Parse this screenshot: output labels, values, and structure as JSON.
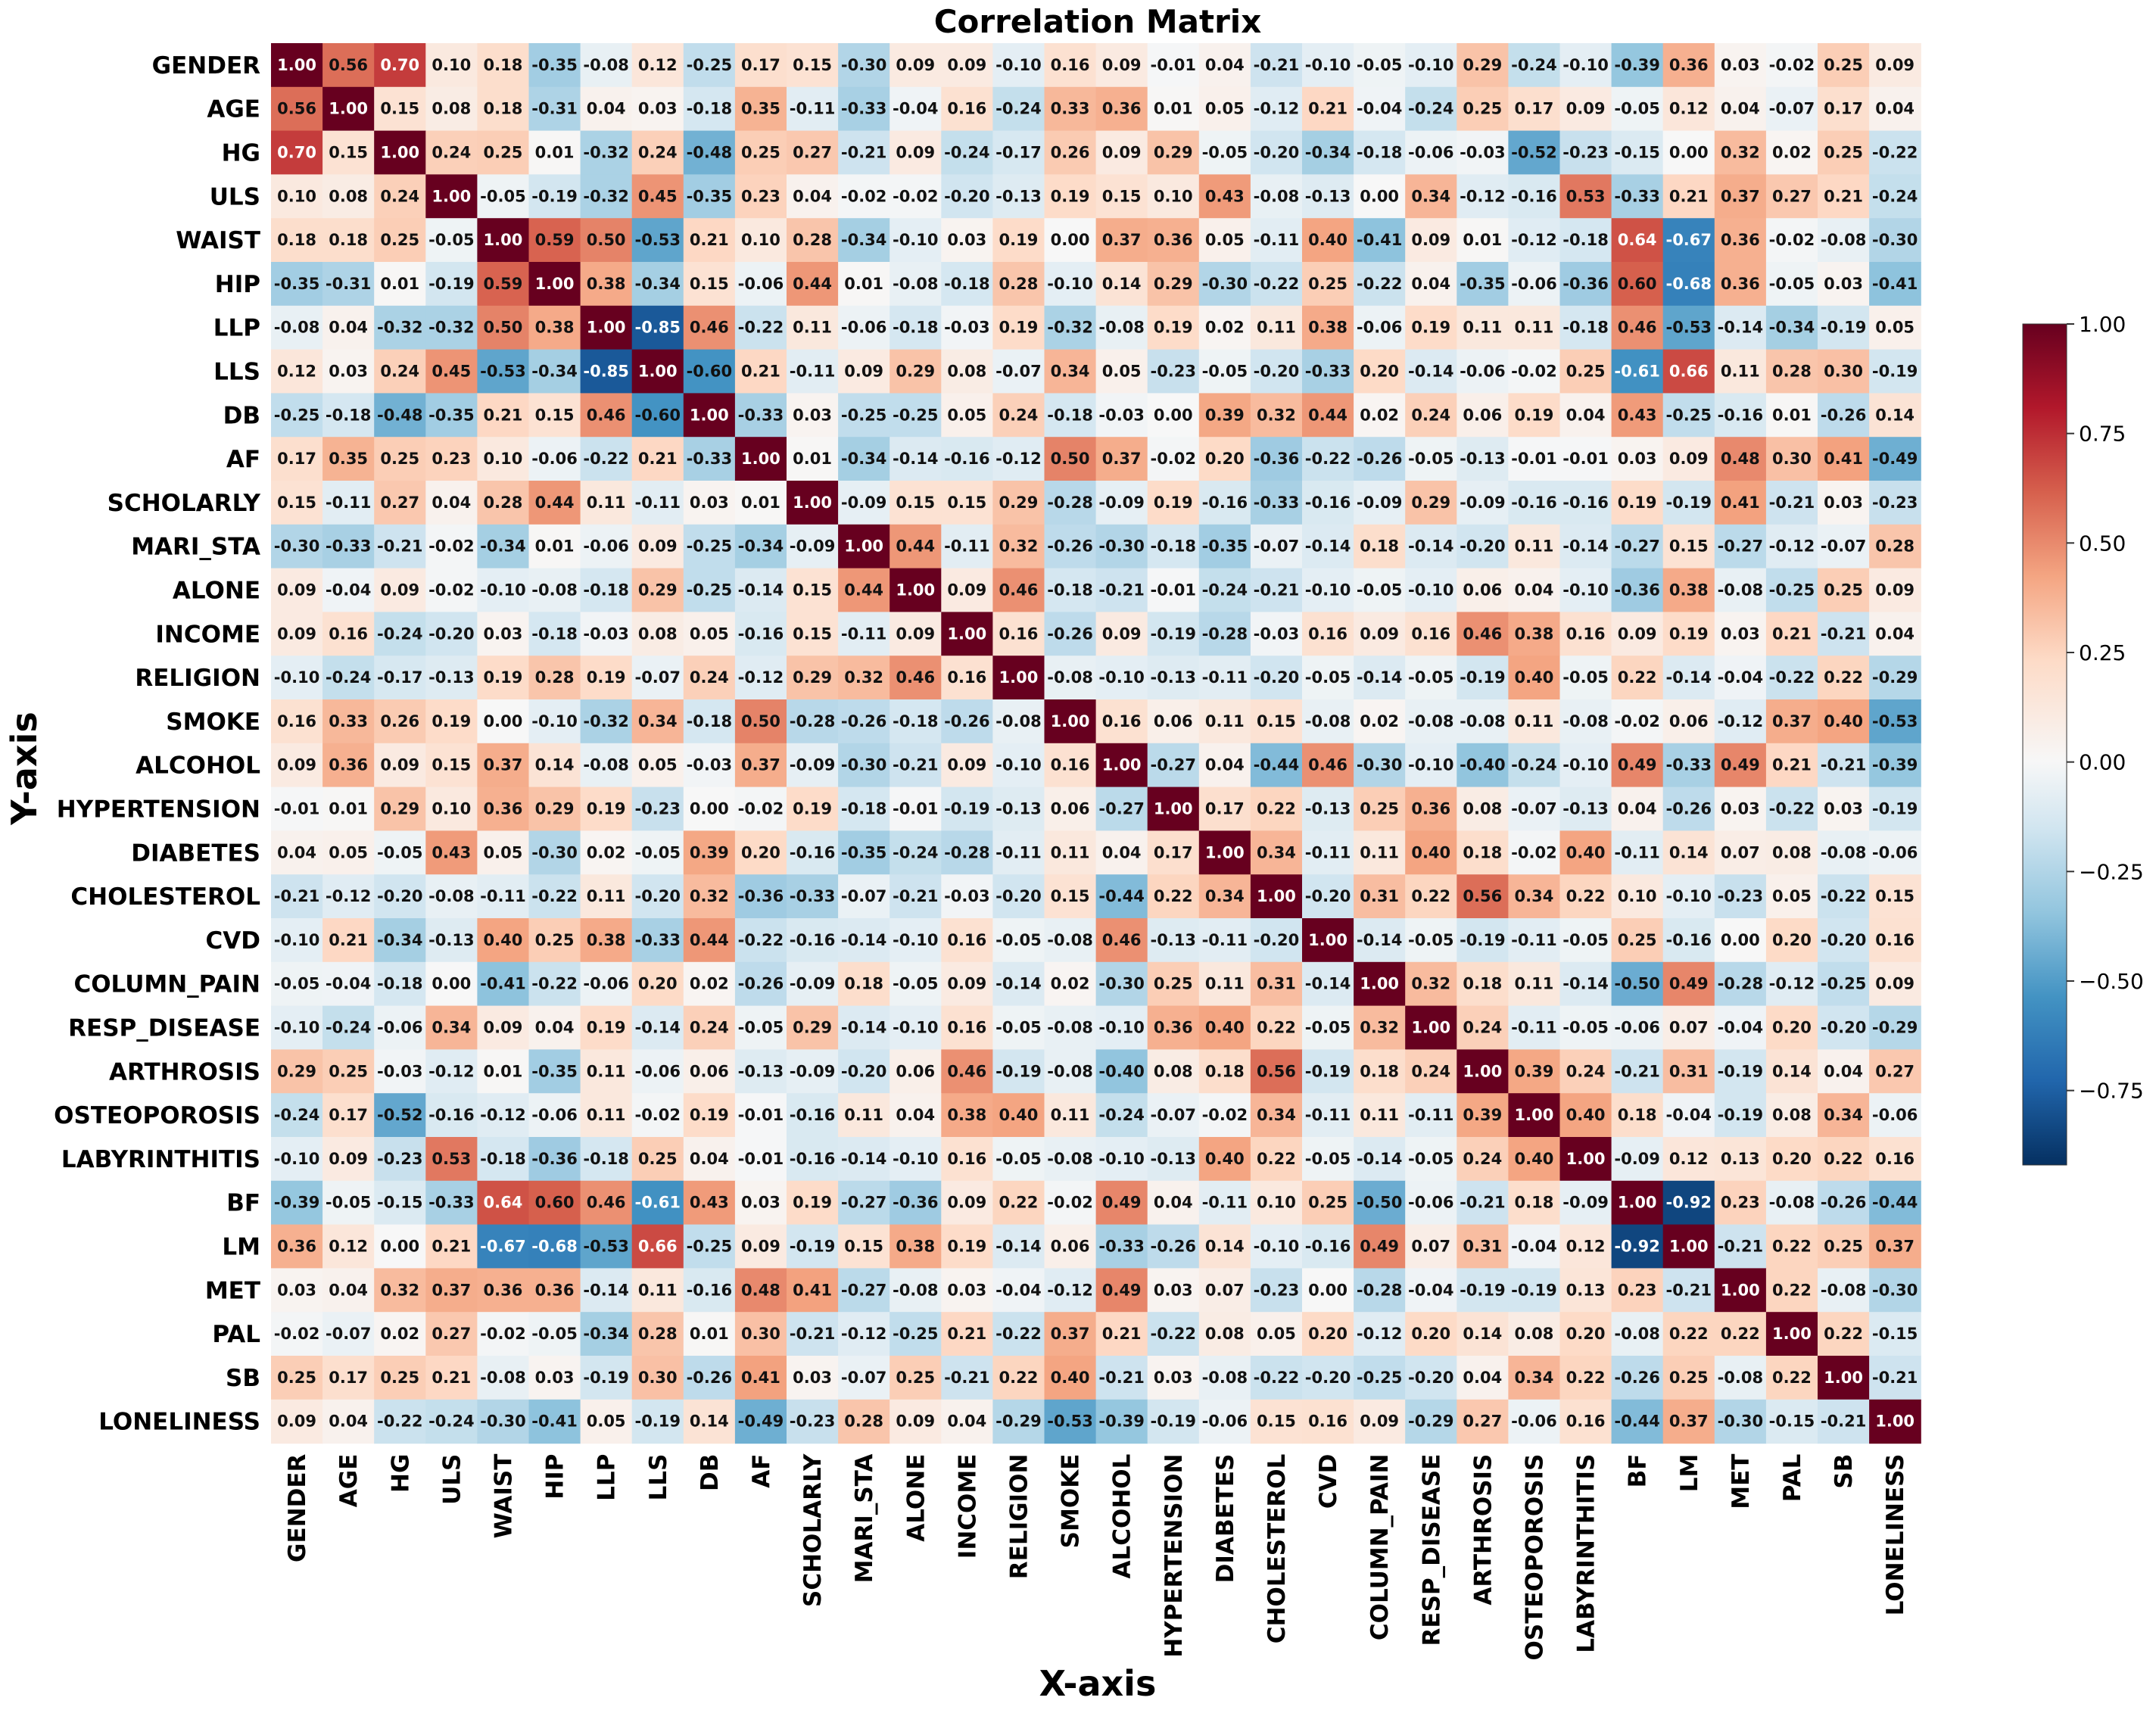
{
  "chart_data": {
    "type": "heatmap",
    "title": "Correlation Matrix",
    "xlabel": "X-axis",
    "ylabel": "Y-axis",
    "variables": [
      "GENDER",
      "AGE",
      "HG",
      "ULS",
      "WAIST",
      "HIP",
      "LLP",
      "LLS",
      "DB",
      "AF",
      "SCHOLARLY",
      "MARI_STA",
      "ALONE",
      "INCOME",
      "RELIGION",
      "SMOKE",
      "ALCOHOL",
      "HYPERTENSION",
      "DIABETES",
      "CHOLESTEROL",
      "CVD",
      "COLUMN_PAIN",
      "RESP_DISEASE",
      "ARTHROSIS",
      "OSTEOPOROSIS",
      "LABYRINTHITIS",
      "BF",
      "LM",
      "MET",
      "PAL",
      "SB",
      "LONELINESS"
    ],
    "colorscale": "RdBu_r",
    "vmin": -0.92,
    "vmax": 1.0,
    "colorbar_ticks": [
      1.0,
      0.75,
      0.5,
      0.25,
      0.0,
      -0.25,
      -0.5,
      -0.75
    ],
    "colors": {
      "low": "#053061",
      "mid": "#f7f7f7",
      "high": "#67001f"
    },
    "values": [
      [
        1.0,
        0.56,
        0.7,
        0.1,
        0.18,
        -0.35,
        -0.08,
        0.12,
        -0.25,
        0.17,
        0.15,
        -0.3,
        0.09,
        0.09,
        -0.1,
        0.16,
        0.09,
        -0.01,
        0.04,
        -0.21,
        -0.1,
        -0.05,
        -0.1,
        0.29,
        -0.24,
        -0.1,
        -0.39,
        0.36,
        0.03,
        -0.02,
        0.25,
        0.09
      ],
      [
        0.56,
        1.0,
        0.15,
        0.08,
        0.18,
        -0.31,
        0.04,
        0.03,
        -0.18,
        0.35,
        -0.11,
        -0.33,
        -0.04,
        0.16,
        -0.24,
        0.33,
        0.36,
        0.01,
        0.05,
        -0.12,
        0.21,
        -0.04,
        -0.24,
        0.25,
        0.17,
        0.09,
        -0.05,
        0.12,
        0.04,
        -0.07,
        0.17,
        0.04
      ],
      [
        0.7,
        0.15,
        1.0,
        0.24,
        0.25,
        0.01,
        -0.32,
        0.24,
        -0.48,
        0.25,
        0.27,
        -0.21,
        0.09,
        -0.24,
        -0.17,
        0.26,
        0.09,
        0.29,
        -0.05,
        -0.2,
        -0.34,
        -0.18,
        -0.06,
        -0.03,
        -0.52,
        -0.23,
        -0.15,
        -0.0,
        0.32,
        0.02,
        0.25,
        -0.22
      ],
      [
        0.1,
        0.08,
        0.24,
        1.0,
        -0.05,
        -0.19,
        -0.32,
        0.45,
        -0.35,
        0.23,
        0.04,
        -0.02,
        -0.02,
        -0.2,
        -0.13,
        0.19,
        0.15,
        0.1,
        0.43,
        -0.08,
        -0.13,
        -0.0,
        0.34,
        -0.12,
        -0.16,
        0.53,
        -0.33,
        0.21,
        0.37,
        0.27,
        0.21,
        -0.24
      ],
      [
        0.18,
        0.18,
        0.25,
        -0.05,
        1.0,
        0.59,
        0.5,
        -0.53,
        0.21,
        0.1,
        0.28,
        -0.34,
        -0.1,
        0.03,
        0.19,
        0.0,
        0.37,
        0.36,
        0.05,
        -0.11,
        0.4,
        -0.41,
        0.09,
        0.01,
        -0.12,
        -0.18,
        0.64,
        -0.67,
        0.36,
        -0.02,
        -0.08,
        -0.3
      ],
      [
        -0.35,
        -0.31,
        0.01,
        -0.19,
        0.59,
        1.0,
        0.38,
        -0.34,
        0.15,
        -0.06,
        0.44,
        0.01,
        -0.08,
        -0.18,
        0.28,
        -0.1,
        0.14,
        0.29,
        -0.3,
        -0.22,
        0.25,
        -0.22,
        0.04,
        -0.35,
        -0.06,
        -0.36,
        0.6,
        -0.68,
        0.36,
        -0.05,
        0.03,
        -0.41
      ],
      [
        -0.08,
        0.04,
        -0.32,
        -0.32,
        0.5,
        0.38,
        1.0,
        -0.85,
        0.46,
        -0.22,
        0.11,
        -0.06,
        -0.18,
        -0.03,
        0.19,
        -0.32,
        -0.08,
        0.19,
        0.02,
        0.11,
        0.38,
        -0.06,
        0.19,
        0.11,
        0.11,
        -0.18,
        0.46,
        -0.53,
        -0.14,
        -0.34,
        -0.19,
        0.05
      ],
      [
        0.12,
        0.03,
        0.24,
        0.45,
        -0.53,
        -0.34,
        -0.85,
        1.0,
        -0.6,
        0.21,
        -0.11,
        0.09,
        0.29,
        0.08,
        -0.07,
        0.34,
        0.05,
        -0.23,
        -0.05,
        -0.2,
        -0.33,
        0.2,
        -0.14,
        -0.06,
        -0.02,
        0.25,
        -0.61,
        0.66,
        0.11,
        0.28,
        0.3,
        -0.19
      ],
      [
        -0.25,
        -0.18,
        -0.48,
        -0.35,
        0.21,
        0.15,
        0.46,
        -0.6,
        1.0,
        -0.33,
        0.03,
        -0.25,
        -0.25,
        0.05,
        0.24,
        -0.18,
        -0.03,
        0.0,
        0.39,
        0.32,
        0.44,
        0.02,
        0.24,
        0.06,
        0.19,
        0.04,
        0.43,
        -0.25,
        -0.16,
        0.01,
        -0.26,
        0.14
      ],
      [
        0.17,
        0.35,
        0.25,
        0.23,
        0.1,
        -0.06,
        -0.22,
        0.21,
        -0.33,
        1.0,
        0.01,
        -0.34,
        -0.14,
        -0.16,
        -0.12,
        0.5,
        0.37,
        -0.02,
        0.2,
        -0.36,
        -0.22,
        -0.26,
        -0.05,
        -0.13,
        -0.01,
        -0.01,
        0.03,
        0.09,
        0.48,
        0.3,
        0.41,
        -0.49
      ],
      [
        0.15,
        -0.11,
        0.27,
        0.04,
        0.28,
        0.44,
        0.11,
        -0.11,
        0.03,
        0.01,
        1.0,
        -0.09,
        0.15,
        0.15,
        0.29,
        -0.28,
        -0.09,
        0.19,
        -0.16,
        -0.33,
        -0.16,
        -0.09,
        0.29,
        -0.09,
        -0.16,
        -0.16,
        0.19,
        -0.19,
        0.41,
        -0.21,
        0.03,
        -0.23
      ],
      [
        -0.3,
        -0.33,
        -0.21,
        -0.02,
        -0.34,
        0.01,
        -0.06,
        0.09,
        -0.25,
        -0.34,
        -0.09,
        1.0,
        0.44,
        -0.11,
        0.32,
        -0.26,
        -0.3,
        -0.18,
        -0.35,
        -0.07,
        -0.14,
        0.18,
        -0.14,
        -0.2,
        0.11,
        -0.14,
        -0.27,
        0.15,
        -0.27,
        -0.12,
        -0.07,
        0.28
      ],
      [
        0.09,
        -0.04,
        0.09,
        -0.02,
        -0.1,
        -0.08,
        -0.18,
        0.29,
        -0.25,
        -0.14,
        0.15,
        0.44,
        1.0,
        0.09,
        0.46,
        -0.18,
        -0.21,
        -0.01,
        -0.24,
        -0.21,
        -0.1,
        -0.05,
        -0.1,
        0.06,
        0.04,
        -0.1,
        -0.36,
        0.38,
        -0.08,
        -0.25,
        0.25,
        0.09
      ],
      [
        0.09,
        0.16,
        -0.24,
        -0.2,
        0.03,
        -0.18,
        -0.03,
        0.08,
        0.05,
        -0.16,
        0.15,
        -0.11,
        0.09,
        1.0,
        0.16,
        -0.26,
        0.09,
        -0.19,
        -0.28,
        -0.03,
        0.16,
        0.09,
        0.16,
        0.46,
        0.38,
        0.16,
        0.09,
        0.19,
        0.03,
        0.21,
        -0.21,
        0.04
      ],
      [
        -0.1,
        -0.24,
        -0.17,
        -0.13,
        0.19,
        0.28,
        0.19,
        -0.07,
        0.24,
        -0.12,
        0.29,
        0.32,
        0.46,
        0.16,
        1.0,
        -0.08,
        -0.1,
        -0.13,
        -0.11,
        -0.2,
        -0.05,
        -0.14,
        -0.05,
        -0.19,
        0.4,
        -0.05,
        0.22,
        -0.14,
        -0.04,
        -0.22,
        0.22,
        -0.29
      ],
      [
        0.16,
        0.33,
        0.26,
        0.19,
        0.0,
        -0.1,
        -0.32,
        0.34,
        -0.18,
        0.5,
        -0.28,
        -0.26,
        -0.18,
        -0.26,
        -0.08,
        1.0,
        0.16,
        0.06,
        0.11,
        0.15,
        -0.08,
        0.02,
        -0.08,
        -0.08,
        0.11,
        -0.08,
        -0.02,
        0.06,
        -0.12,
        0.37,
        0.4,
        -0.53
      ],
      [
        0.09,
        0.36,
        0.09,
        0.15,
        0.37,
        0.14,
        -0.08,
        0.05,
        -0.03,
        0.37,
        -0.09,
        -0.3,
        -0.21,
        0.09,
        -0.1,
        0.16,
        1.0,
        -0.27,
        0.04,
        -0.44,
        0.46,
        -0.3,
        -0.1,
        -0.4,
        -0.24,
        -0.1,
        0.49,
        -0.33,
        0.49,
        0.21,
        -0.21,
        -0.39
      ],
      [
        -0.01,
        0.01,
        0.29,
        0.1,
        0.36,
        0.29,
        0.19,
        -0.23,
        0.0,
        -0.02,
        0.19,
        -0.18,
        -0.01,
        -0.19,
        -0.13,
        0.06,
        -0.27,
        1.0,
        0.17,
        0.22,
        -0.13,
        0.25,
        0.36,
        0.08,
        -0.07,
        -0.13,
        0.04,
        -0.26,
        0.03,
        -0.22,
        0.03,
        -0.19
      ],
      [
        0.04,
        0.05,
        -0.05,
        0.43,
        0.05,
        -0.3,
        0.02,
        -0.05,
        0.39,
        0.2,
        -0.16,
        -0.35,
        -0.24,
        -0.28,
        -0.11,
        0.11,
        0.04,
        0.17,
        1.0,
        0.34,
        -0.11,
        0.11,
        0.4,
        0.18,
        -0.02,
        0.4,
        -0.11,
        0.14,
        0.07,
        0.08,
        -0.08,
        -0.06
      ],
      [
        -0.21,
        -0.12,
        -0.2,
        -0.08,
        -0.11,
        -0.22,
        0.11,
        -0.2,
        0.32,
        -0.36,
        -0.33,
        -0.07,
        -0.21,
        -0.03,
        -0.2,
        0.15,
        -0.44,
        0.22,
        0.34,
        1.0,
        -0.2,
        0.31,
        0.22,
        0.56,
        0.34,
        0.22,
        0.1,
        -0.1,
        -0.23,
        0.05,
        -0.22,
        0.15
      ],
      [
        -0.1,
        0.21,
        -0.34,
        -0.13,
        0.4,
        0.25,
        0.38,
        -0.33,
        0.44,
        -0.22,
        -0.16,
        -0.14,
        -0.1,
        0.16,
        -0.05,
        -0.08,
        0.46,
        -0.13,
        -0.11,
        -0.2,
        1.0,
        -0.14,
        -0.05,
        -0.19,
        -0.11,
        -0.05,
        0.25,
        -0.16,
        -0.0,
        0.2,
        -0.2,
        0.16
      ],
      [
        -0.05,
        -0.04,
        -0.18,
        -0.0,
        -0.41,
        -0.22,
        -0.06,
        0.2,
        0.02,
        -0.26,
        -0.09,
        0.18,
        -0.05,
        0.09,
        -0.14,
        0.02,
        -0.3,
        0.25,
        0.11,
        0.31,
        -0.14,
        1.0,
        0.32,
        0.18,
        0.11,
        -0.14,
        -0.5,
        0.49,
        -0.28,
        -0.12,
        -0.25,
        0.09
      ],
      [
        -0.1,
        -0.24,
        -0.06,
        0.34,
        0.09,
        0.04,
        0.19,
        -0.14,
        0.24,
        -0.05,
        0.29,
        -0.14,
        -0.1,
        0.16,
        -0.05,
        -0.08,
        -0.1,
        0.36,
        0.4,
        0.22,
        -0.05,
        0.32,
        1.0,
        0.24,
        -0.11,
        -0.05,
        -0.06,
        0.07,
        -0.04,
        0.2,
        -0.2,
        -0.29
      ],
      [
        0.29,
        0.25,
        -0.03,
        -0.12,
        0.01,
        -0.35,
        0.11,
        -0.06,
        0.06,
        -0.13,
        -0.09,
        -0.2,
        0.06,
        0.46,
        -0.19,
        -0.08,
        -0.4,
        0.08,
        0.18,
        0.56,
        -0.19,
        0.18,
        0.24,
        1.0,
        0.39,
        0.24,
        -0.21,
        0.31,
        -0.19,
        0.14,
        0.04,
        0.27
      ],
      [
        -0.24,
        0.17,
        -0.52,
        -0.16,
        -0.12,
        -0.06,
        0.11,
        -0.02,
        0.19,
        -0.01,
        -0.16,
        0.11,
        0.04,
        0.38,
        0.4,
        0.11,
        -0.24,
        -0.07,
        -0.02,
        0.34,
        -0.11,
        0.11,
        -0.11,
        0.39,
        1.0,
        0.4,
        0.18,
        -0.04,
        -0.19,
        0.08,
        0.34,
        -0.06
      ],
      [
        -0.1,
        0.09,
        -0.23,
        0.53,
        -0.18,
        -0.36,
        -0.18,
        0.25,
        0.04,
        -0.01,
        -0.16,
        -0.14,
        -0.1,
        0.16,
        -0.05,
        -0.08,
        -0.1,
        -0.13,
        0.4,
        0.22,
        -0.05,
        -0.14,
        -0.05,
        0.24,
        0.4,
        1.0,
        -0.09,
        0.12,
        0.13,
        0.2,
        0.22,
        0.16
      ],
      [
        -0.39,
        -0.05,
        -0.15,
        -0.33,
        0.64,
        0.6,
        0.46,
        -0.61,
        0.43,
        0.03,
        0.19,
        -0.27,
        -0.36,
        0.09,
        0.22,
        -0.02,
        0.49,
        0.04,
        -0.11,
        0.1,
        0.25,
        -0.5,
        -0.06,
        -0.21,
        0.18,
        -0.09,
        1.0,
        -0.92,
        0.23,
        -0.08,
        -0.26,
        -0.44
      ],
      [
        0.36,
        0.12,
        -0.0,
        0.21,
        -0.67,
        -0.68,
        -0.53,
        0.66,
        -0.25,
        0.09,
        -0.19,
        0.15,
        0.38,
        0.19,
        -0.14,
        0.06,
        -0.33,
        -0.26,
        0.14,
        -0.1,
        -0.16,
        0.49,
        0.07,
        0.31,
        -0.04,
        0.12,
        -0.92,
        1.0,
        -0.21,
        0.22,
        0.25,
        0.37
      ],
      [
        0.03,
        0.04,
        0.32,
        0.37,
        0.36,
        0.36,
        -0.14,
        0.11,
        -0.16,
        0.48,
        0.41,
        -0.27,
        -0.08,
        0.03,
        -0.04,
        -0.12,
        0.49,
        0.03,
        0.07,
        -0.23,
        -0.0,
        -0.28,
        -0.04,
        -0.19,
        -0.19,
        0.13,
        0.23,
        -0.21,
        1.0,
        0.22,
        -0.08,
        -0.3
      ],
      [
        -0.02,
        -0.07,
        0.02,
        0.27,
        -0.02,
        -0.05,
        -0.34,
        0.28,
        0.01,
        0.3,
        -0.21,
        -0.12,
        -0.25,
        0.21,
        -0.22,
        0.37,
        0.21,
        -0.22,
        0.08,
        0.05,
        0.2,
        -0.12,
        0.2,
        0.14,
        0.08,
        0.2,
        -0.08,
        0.22,
        0.22,
        1.0,
        0.22,
        -0.15
      ],
      [
        0.25,
        0.17,
        0.25,
        0.21,
        -0.08,
        0.03,
        -0.19,
        0.3,
        -0.26,
        0.41,
        0.03,
        -0.07,
        0.25,
        -0.21,
        0.22,
        0.4,
        -0.21,
        0.03,
        -0.08,
        -0.22,
        -0.2,
        -0.25,
        -0.2,
        0.04,
        0.34,
        0.22,
        -0.26,
        0.25,
        -0.08,
        0.22,
        1.0,
        -0.21
      ],
      [
        0.09,
        0.04,
        -0.22,
        -0.24,
        -0.3,
        -0.41,
        0.05,
        -0.19,
        0.14,
        -0.49,
        -0.23,
        0.28,
        0.09,
        0.04,
        -0.29,
        -0.53,
        -0.39,
        -0.19,
        -0.06,
        0.15,
        0.16,
        0.09,
        -0.29,
        0.27,
        -0.06,
        0.16,
        -0.44,
        0.37,
        -0.3,
        -0.15,
        -0.21,
        1.0
      ]
    ]
  }
}
